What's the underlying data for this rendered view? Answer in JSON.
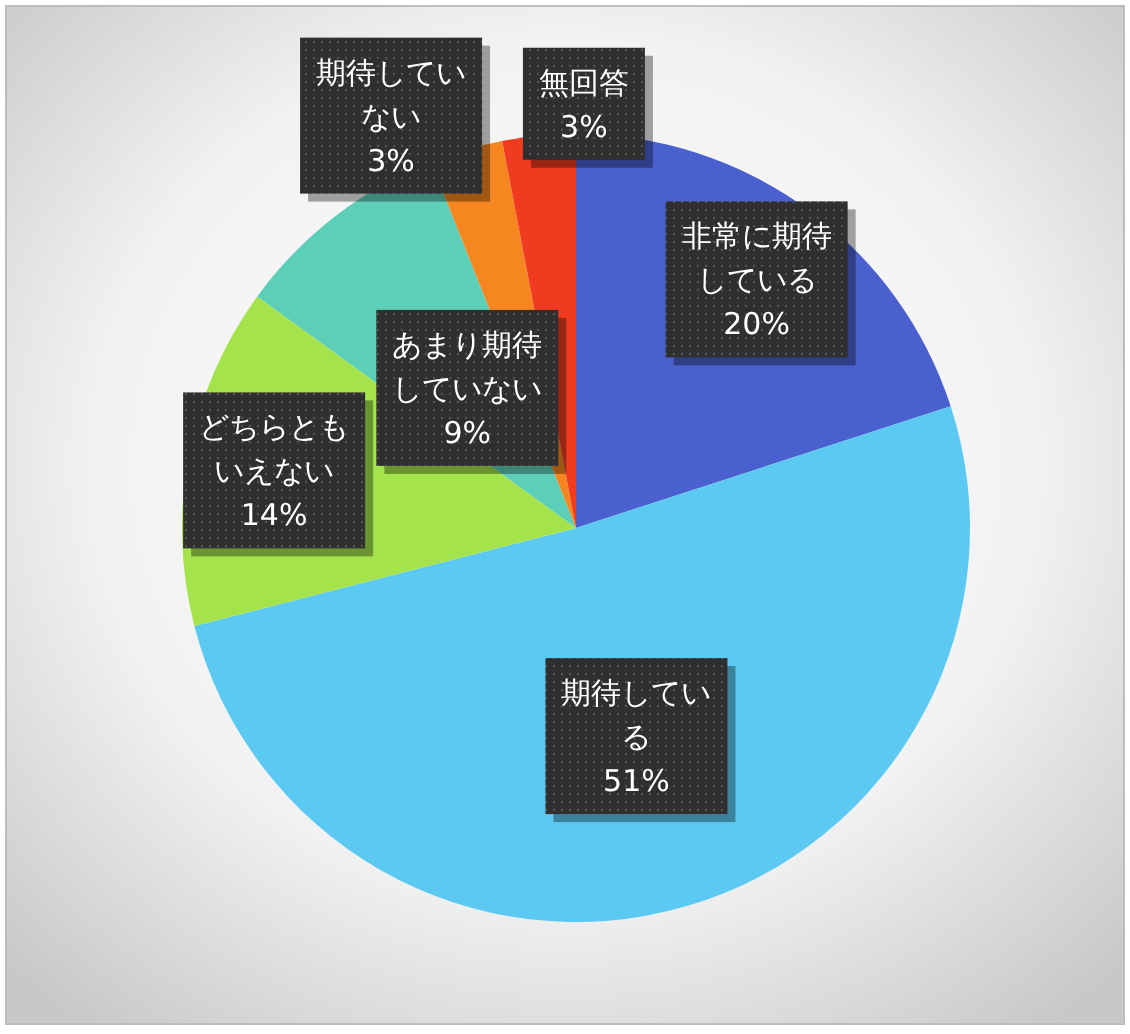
{
  "chart_data": {
    "type": "pie",
    "categories": [
      "非常に期待している",
      "期待している",
      "どちらともいえない",
      "あまり期待していない",
      "期待していない",
      "無回答"
    ],
    "values": [
      20,
      51,
      14,
      9,
      3,
      3
    ],
    "colors": [
      "#4a60cf",
      "#5bc9f2",
      "#a5e34c",
      "#5dcfb9",
      "#f6861f",
      "#ef3b1f"
    ],
    "value_labels": [
      "20%",
      "51%",
      "14%",
      "9%",
      "3%",
      "3%"
    ]
  }
}
